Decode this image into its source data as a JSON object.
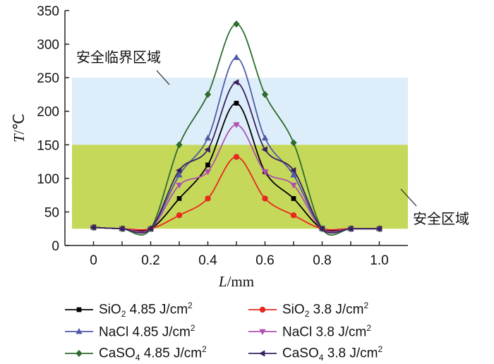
{
  "chart_data": {
    "type": "line",
    "xlabel": "L/mm",
    "ylabel": "T/℃",
    "xlim": [
      -0.1,
      1.1
    ],
    "ylim": [
      0,
      350
    ],
    "x_ticks": [
      "0",
      "0.2",
      "0.4",
      "0.6",
      "0.8",
      "1.0"
    ],
    "y_ticks": [
      "0",
      "50",
      "100",
      "150",
      "200",
      "250",
      "300",
      "350"
    ],
    "x": [
      0,
      0.1,
      0.2,
      0.3,
      0.4,
      0.5,
      0.6,
      0.7,
      0.8,
      0.9,
      1.0
    ],
    "bands": [
      {
        "label": "安全临界区域",
        "y_from": 150,
        "y_to": 250,
        "color": "#ddeefa"
      },
      {
        "label": "安全区域",
        "y_from": 25,
        "y_to": 150,
        "color": "#c5d85a"
      }
    ],
    "series": [
      {
        "name": "SiO₂ 4.85 J/cm²",
        "color": "#000000",
        "marker": "square",
        "values": [
          27,
          25,
          25,
          70,
          120,
          212,
          110,
          70,
          25,
          25,
          25
        ]
      },
      {
        "name": "SiO₂ 3.8 J/cm²",
        "color": "#e8281e",
        "marker": "circle",
        "values": [
          27,
          25,
          25,
          45,
          70,
          132,
          70,
          45,
          25,
          25,
          25
        ]
      },
      {
        "name": "NaCl 4.85 J/cm²",
        "color": "#4f5aa6",
        "marker": "triangle-up",
        "values": [
          27,
          25,
          25,
          105,
          160,
          280,
          160,
          105,
          25,
          25,
          25
        ]
      },
      {
        "name": "NaCl 3.8 J/cm²",
        "color": "#b04fb0",
        "marker": "triangle-down",
        "values": [
          27,
          25,
          25,
          90,
          110,
          180,
          110,
          90,
          25,
          25,
          25
        ]
      },
      {
        "name": "CaSO₄ 4.85 J/cm²",
        "color": "#2e6b2e",
        "marker": "diamond",
        "values": [
          27,
          25,
          25,
          150,
          225,
          330,
          225,
          153,
          25,
          25,
          25
        ]
      },
      {
        "name": "CaSO₄ 3.8 J/cm²",
        "color": "#3a2060",
        "marker": "triangle-left",
        "values": [
          27,
          25,
          25,
          112,
          143,
          243,
          143,
          112,
          25,
          25,
          25
        ]
      }
    ],
    "legend": {
      "position": "bottom",
      "columns": 2
    }
  },
  "legend_text": [
    {
      "main": "SiO",
      "sub": "2",
      "rest": " 4.85 J/cm",
      "sup": "2"
    },
    {
      "main": "SiO",
      "sub": "2",
      "rest": " 3.8 J/cm",
      "sup": "2"
    },
    {
      "main": "NaCl 4.85 J/cm",
      "sub": "",
      "rest": "",
      "sup": "2"
    },
    {
      "main": "NaCl 3.8 J/cm",
      "sub": "",
      "rest": "",
      "sup": "2"
    },
    {
      "main": "CaSO",
      "sub": "4",
      "rest": " 4.85 J/cm",
      "sup": "2"
    },
    {
      "main": "CaSO",
      "sub": "4",
      "rest": " 3.8 J/cm",
      "sup": "2"
    }
  ]
}
